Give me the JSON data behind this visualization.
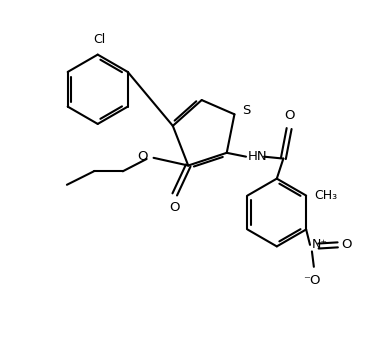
{
  "bg_color": "#ffffff",
  "line_color": "#000000",
  "line_width": 1.5,
  "figsize": [
    3.88,
    3.48
  ],
  "dpi": 100,
  "xlim": [
    0,
    10
  ],
  "ylim": [
    0,
    9
  ]
}
